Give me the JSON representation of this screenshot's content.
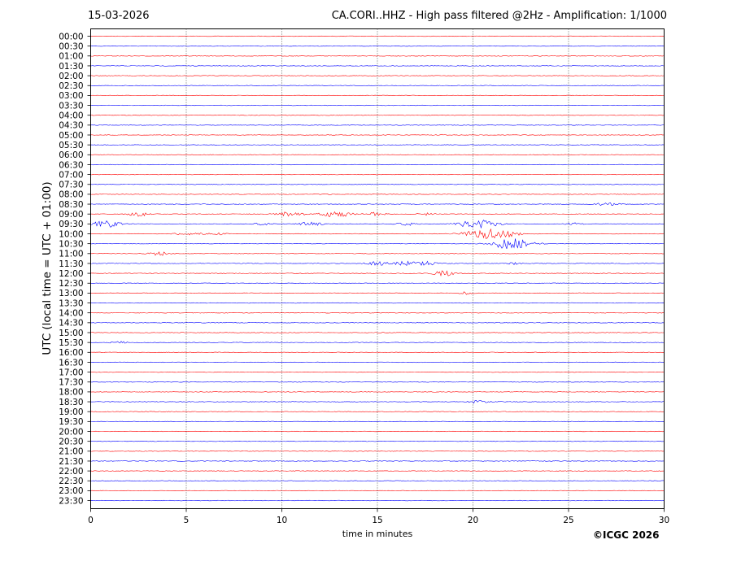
{
  "header": {
    "date": "15-03-2026",
    "title": "CA.CORI..HHZ - High pass filtered @2Hz - Amplification: 1/1000"
  },
  "footer": {
    "copyright": "©ICGC 2026"
  },
  "chart_data": {
    "type": "line",
    "title": "CA.CORI..HHZ - High pass filtered @2Hz - Amplification: 1/1000",
    "xlabel": "time in minutes",
    "ylabel": "UTC (local time = UTC + 01:00)",
    "xlim": [
      0,
      30
    ],
    "x_ticks": [
      0,
      5,
      10,
      15,
      20,
      25,
      30
    ],
    "grid": "dotted vertical lines at 5-minute intervals",
    "colors": {
      "even_rows": "#ff0000",
      "odd_rows": "#0000ff"
    },
    "row_labels": [
      "00:00",
      "00:30",
      "01:00",
      "01:30",
      "02:00",
      "02:30",
      "03:00",
      "03:30",
      "04:00",
      "04:30",
      "05:00",
      "05:30",
      "06:00",
      "06:30",
      "07:00",
      "07:30",
      "08:00",
      "08:30",
      "09:00",
      "09:30",
      "10:00",
      "10:30",
      "11:00",
      "11:30",
      "12:00",
      "12:30",
      "13:00",
      "13:30",
      "14:00",
      "14:30",
      "15:00",
      "15:30",
      "16:00",
      "16:30",
      "17:00",
      "17:30",
      "18:00",
      "18:30",
      "19:00",
      "19:30",
      "20:00",
      "20:30",
      "21:00",
      "21:30",
      "22:00",
      "22:30",
      "23:00",
      "23:30"
    ],
    "events": [
      {
        "row": "05:00",
        "minute": 18.4,
        "amp": 0.6
      },
      {
        "row": "08:00",
        "minute": 12.3,
        "amp": 0.6
      },
      {
        "row": "08:30",
        "minute": 26.8,
        "amp": 1.5
      },
      {
        "row": "08:30",
        "minute": 27.4,
        "amp": 1.2
      },
      {
        "row": "09:00",
        "minute": 2.5,
        "amp": 2.5
      },
      {
        "row": "09:00",
        "minute": 10.5,
        "amp": 3
      },
      {
        "row": "09:00",
        "minute": 12.5,
        "amp": 2.5
      },
      {
        "row": "09:00",
        "minute": 13.2,
        "amp": 2.5
      },
      {
        "row": "09:00",
        "minute": 14.9,
        "amp": 2
      },
      {
        "row": "09:00",
        "minute": 17.6,
        "amp": 1.5
      },
      {
        "row": "09:30",
        "minute": 0.8,
        "amp": 4
      },
      {
        "row": "09:30",
        "minute": 9,
        "amp": 1.5
      },
      {
        "row": "09:30",
        "minute": 11.5,
        "amp": 2.5
      },
      {
        "row": "09:30",
        "minute": 16.5,
        "amp": 2
      },
      {
        "row": "09:30",
        "minute": 19.7,
        "amp": 3
      },
      {
        "row": "09:30",
        "minute": 20.6,
        "amp": 4
      },
      {
        "row": "09:30",
        "minute": 25.3,
        "amp": 1.5
      },
      {
        "row": "10:00",
        "minute": 4.7,
        "amp": 1.5
      },
      {
        "row": "10:00",
        "minute": 5.5,
        "amp": 1.5
      },
      {
        "row": "10:00",
        "minute": 6.6,
        "amp": 1.5
      },
      {
        "row": "10:00",
        "minute": 20.7,
        "amp": 6
      },
      {
        "row": "10:00",
        "minute": 22,
        "amp": 2
      },
      {
        "row": "10:30",
        "minute": 21.5,
        "amp": 3.5
      },
      {
        "row": "10:30",
        "minute": 22.3,
        "amp": 5
      },
      {
        "row": "11:00",
        "minute": 3.6,
        "amp": 2.5
      },
      {
        "row": "11:30",
        "minute": 15,
        "amp": 2.5
      },
      {
        "row": "11:30",
        "minute": 16.4,
        "amp": 2.5
      },
      {
        "row": "11:30",
        "minute": 17.5,
        "amp": 2.5
      },
      {
        "row": "11:30",
        "minute": 22.1,
        "amp": 1.2
      },
      {
        "row": "12:00",
        "minute": 18.5,
        "amp": 3
      },
      {
        "row": "13:00",
        "minute": 19.6,
        "amp": 1.5
      },
      {
        "row": "15:30",
        "minute": 1.5,
        "amp": 1.5
      },
      {
        "row": "18:30",
        "minute": 20.3,
        "amp": 2
      }
    ]
  }
}
